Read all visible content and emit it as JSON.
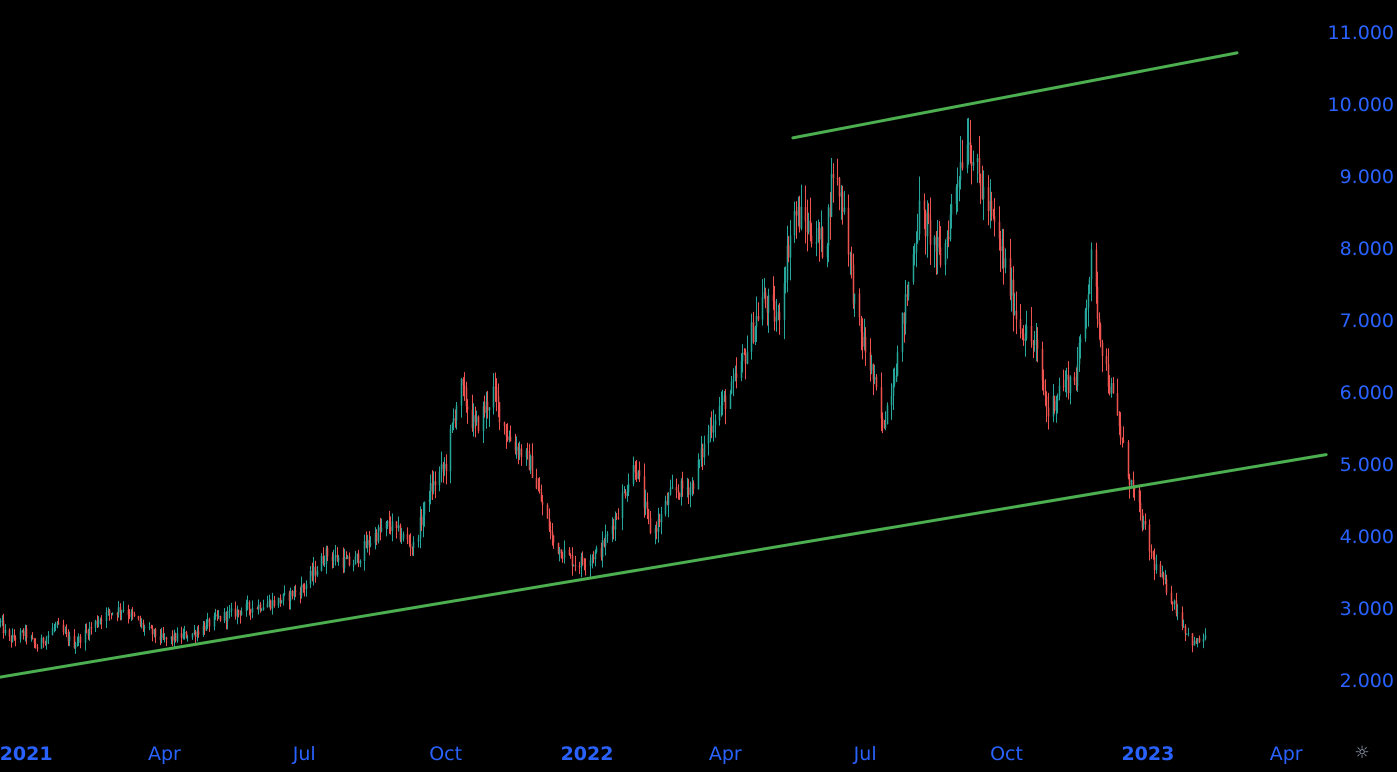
{
  "chart_data": {
    "type": "candlestick",
    "x_range": [
      "2020-12-15",
      "2023-04-23"
    ],
    "ylim": [
      1.6,
      11.35
    ],
    "y_ticks": [
      {
        "value": 11,
        "label": "11.000"
      },
      {
        "value": 10,
        "label": "10.000"
      },
      {
        "value": 9,
        "label": "9.000"
      },
      {
        "value": 8,
        "label": "8.000"
      },
      {
        "value": 7,
        "label": "7.000"
      },
      {
        "value": 6,
        "label": "6.000"
      },
      {
        "value": 5,
        "label": "5.000"
      },
      {
        "value": 4,
        "label": "4.000"
      },
      {
        "value": 3,
        "label": "3.000"
      },
      {
        "value": 2,
        "label": "2.000"
      }
    ],
    "x_ticks": [
      {
        "date": "2021-01-01",
        "label": "2021",
        "bold": true
      },
      {
        "date": "2021-04-01",
        "label": "Apr",
        "bold": false
      },
      {
        "date": "2021-07-01",
        "label": "Jul",
        "bold": false
      },
      {
        "date": "2021-10-01",
        "label": "Oct",
        "bold": false
      },
      {
        "date": "2022-01-01",
        "label": "2022",
        "bold": true
      },
      {
        "date": "2022-04-01",
        "label": "Apr",
        "bold": false
      },
      {
        "date": "2022-07-01",
        "label": "Jul",
        "bold": false
      },
      {
        "date": "2022-10-01",
        "label": "Oct",
        "bold": false
      },
      {
        "date": "2023-01-01",
        "label": "2023",
        "bold": true
      },
      {
        "date": "2023-04-01",
        "label": "Apr",
        "bold": false
      }
    ],
    "price_path": [
      [
        "2020-12-15",
        2.8
      ],
      [
        "2020-12-20",
        2.55
      ],
      [
        "2020-12-31",
        2.65
      ],
      [
        "2021-01-08",
        2.45
      ],
      [
        "2021-01-20",
        2.75
      ],
      [
        "2021-02-01",
        2.5
      ],
      [
        "2021-02-20",
        2.9
      ],
      [
        "2021-03-05",
        3.0
      ],
      [
        "2021-03-20",
        2.7
      ],
      [
        "2021-04-01",
        2.55
      ],
      [
        "2021-04-20",
        2.65
      ],
      [
        "2021-05-05",
        2.85
      ],
      [
        "2021-05-25",
        3.0
      ],
      [
        "2021-06-15",
        3.1
      ],
      [
        "2021-07-01",
        3.3
      ],
      [
        "2021-07-15",
        3.75
      ],
      [
        "2021-08-01",
        3.6
      ],
      [
        "2021-08-15",
        4.0
      ],
      [
        "2021-08-25",
        4.15
      ],
      [
        "2021-09-10",
        3.85
      ],
      [
        "2021-09-20",
        4.6
      ],
      [
        "2021-10-01",
        5.0
      ],
      [
        "2021-10-10",
        6.1
      ],
      [
        "2021-10-20",
        5.5
      ],
      [
        "2021-11-01",
        6.0
      ],
      [
        "2021-11-10",
        5.4
      ],
      [
        "2021-11-25",
        5.0
      ],
      [
        "2021-12-10",
        3.9
      ],
      [
        "2021-12-25",
        3.6
      ],
      [
        "2022-01-10",
        3.8
      ],
      [
        "2022-01-20",
        4.3
      ],
      [
        "2022-02-01",
        5.0
      ],
      [
        "2022-02-12",
        4.0
      ],
      [
        "2022-02-25",
        4.6
      ],
      [
        "2022-03-10",
        4.7
      ],
      [
        "2022-03-25",
        5.7
      ],
      [
        "2022-04-05",
        6.0
      ],
      [
        "2022-04-15",
        6.6
      ],
      [
        "2022-04-25",
        7.3
      ],
      [
        "2022-05-05",
        7.0
      ],
      [
        "2022-05-15",
        8.5
      ],
      [
        "2022-05-25",
        8.3
      ],
      [
        "2022-06-05",
        8.0
      ],
      [
        "2022-06-10",
        9.1
      ],
      [
        "2022-06-18",
        8.5
      ],
      [
        "2022-06-25",
        7.0
      ],
      [
        "2022-07-05",
        6.3
      ],
      [
        "2022-07-12",
        5.5
      ],
      [
        "2022-07-22",
        6.5
      ],
      [
        "2022-08-05",
        8.5
      ],
      [
        "2022-08-12",
        8.2
      ],
      [
        "2022-08-20",
        7.8
      ],
      [
        "2022-08-28",
        8.8
      ],
      [
        "2022-09-05",
        9.6
      ],
      [
        "2022-09-12",
        9.0
      ],
      [
        "2022-09-20",
        8.5
      ],
      [
        "2022-09-28",
        7.9
      ],
      [
        "2022-10-08",
        7.0
      ],
      [
        "2022-10-20",
        6.6
      ],
      [
        "2022-10-28",
        5.7
      ],
      [
        "2022-11-05",
        6.1
      ],
      [
        "2022-11-15",
        6.2
      ],
      [
        "2022-11-25",
        7.8
      ],
      [
        "2022-12-03",
        6.5
      ],
      [
        "2022-12-10",
        5.8
      ],
      [
        "2022-12-20",
        4.8
      ],
      [
        "2022-12-28",
        4.2
      ],
      [
        "2023-01-05",
        3.6
      ],
      [
        "2023-01-15",
        3.2
      ],
      [
        "2023-01-25",
        2.7
      ],
      [
        "2023-01-31",
        2.5
      ],
      [
        "2023-02-07",
        2.6
      ]
    ],
    "trendlines": [
      {
        "from": [
          "2020-12-15",
          2.04
        ],
        "to": [
          "2023-04-27",
          5.13
        ],
        "color": "#4caf50"
      },
      {
        "from": [
          "2022-05-15",
          9.53
        ],
        "to": [
          "2023-02-28",
          10.71
        ],
        "color": "#4caf50"
      }
    ],
    "colors": {
      "up": "#26a69a",
      "down": "#ef5350",
      "axis_text": "#2962ff",
      "trendline": "#4caf50",
      "background": "#000000"
    }
  },
  "ui": {
    "settings_icon": "gear-icon"
  }
}
